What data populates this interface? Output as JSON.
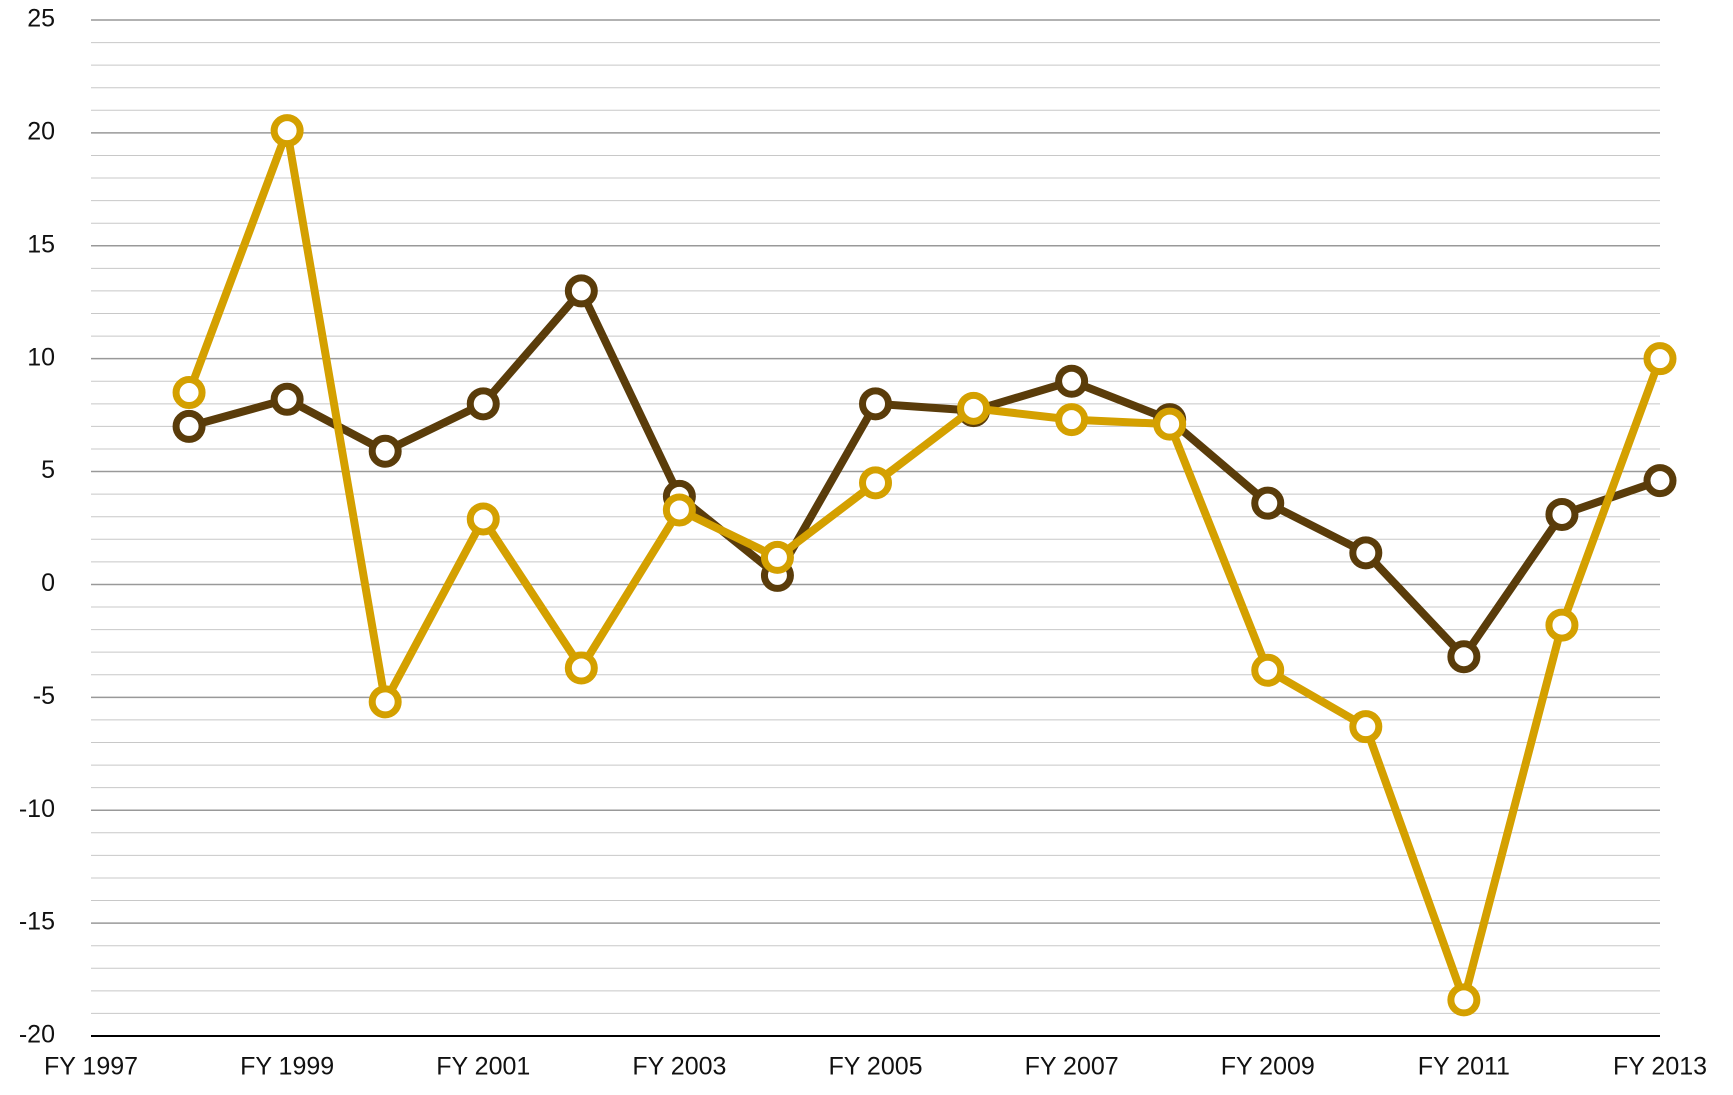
{
  "chart_data": {
    "type": "line",
    "categories": [
      "FY 1997",
      null,
      "FY 1999",
      null,
      "FY 2001",
      null,
      "FY 2003",
      null,
      "FY 2005",
      null,
      "FY 2007",
      null,
      "FY 2009",
      null,
      "FY 2011",
      null,
      "FY 2013"
    ],
    "series": [
      {
        "color": "#5a3c0a",
        "values": [
          null,
          7.0,
          8.2,
          5.9,
          8.0,
          13.0,
          3.9,
          0.4,
          8.0,
          7.7,
          9.0,
          7.3,
          3.6,
          1.4,
          -3.2,
          3.1,
          4.6
        ]
      },
      {
        "color": "#d4a000",
        "values": [
          null,
          8.5,
          20.1,
          -5.2,
          2.9,
          -3.7,
          3.3,
          1.2,
          4.5,
          7.8,
          7.3,
          7.1,
          -3.8,
          -6.3,
          -18.4,
          -1.8,
          10.0
        ]
      }
    ],
    "ylim": [
      -20,
      25
    ],
    "yticks": [
      -20,
      -15,
      -10,
      -5,
      0,
      5,
      10,
      15,
      20,
      25
    ],
    "yminorticks": [
      -19,
      -18,
      -17,
      -16,
      -14,
      -13,
      -12,
      -11,
      -9,
      -8,
      -7,
      -6,
      -4,
      -3,
      -2,
      -1,
      1,
      2,
      3,
      4,
      6,
      7,
      8,
      9,
      11,
      12,
      13,
      14,
      16,
      17,
      18,
      19,
      21,
      22,
      23,
      24
    ],
    "grid": true
  }
}
